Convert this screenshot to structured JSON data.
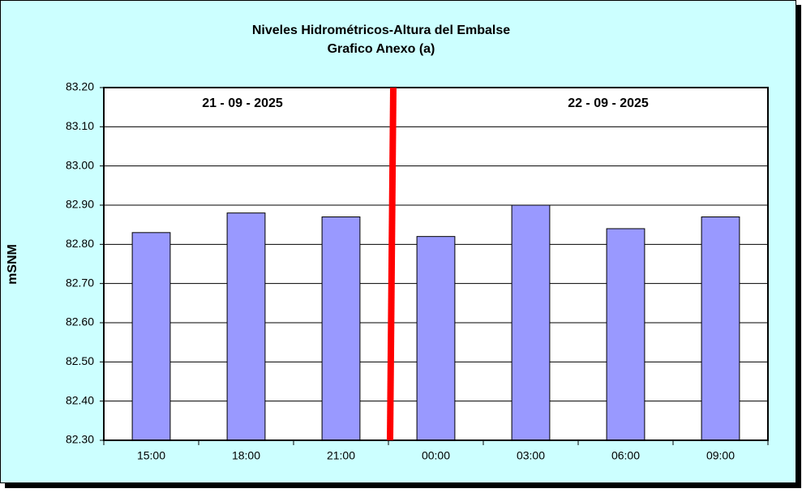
{
  "chart_data": {
    "type": "bar",
    "title": "Niveles Hidrométricos-Altura del Embalse",
    "subtitle": "Grafico Anexo (a)",
    "y_label": "mSNM",
    "annotations": [
      "21 - 09 - 2025",
      "22 - 09 - 2025"
    ],
    "categories": [
      "15:00",
      "18:00",
      "21:00",
      "00:00",
      "03:00",
      "06:00",
      "09:00"
    ],
    "values": [
      82.83,
      82.88,
      82.87,
      82.82,
      82.9,
      82.84,
      82.87
    ],
    "color": "#9999ff",
    "ylim": [
      82.3,
      83.2
    ],
    "yticks": [
      {
        "value": 82.3,
        "label": "82.30"
      },
      {
        "value": 82.4,
        "label": "82.40"
      },
      {
        "value": 82.5,
        "label": "82.50"
      },
      {
        "value": 82.6,
        "label": "82.60"
      },
      {
        "value": 82.7,
        "label": "82.70"
      },
      {
        "value": 82.8,
        "label": "82.80"
      },
      {
        "value": 82.9,
        "label": "82.90"
      },
      {
        "value": 83.0,
        "label": "83.00"
      },
      {
        "value": 83.1,
        "label": "83.10"
      },
      {
        "value": 83.2,
        "label": "83.20"
      }
    ],
    "grid": true
  }
}
